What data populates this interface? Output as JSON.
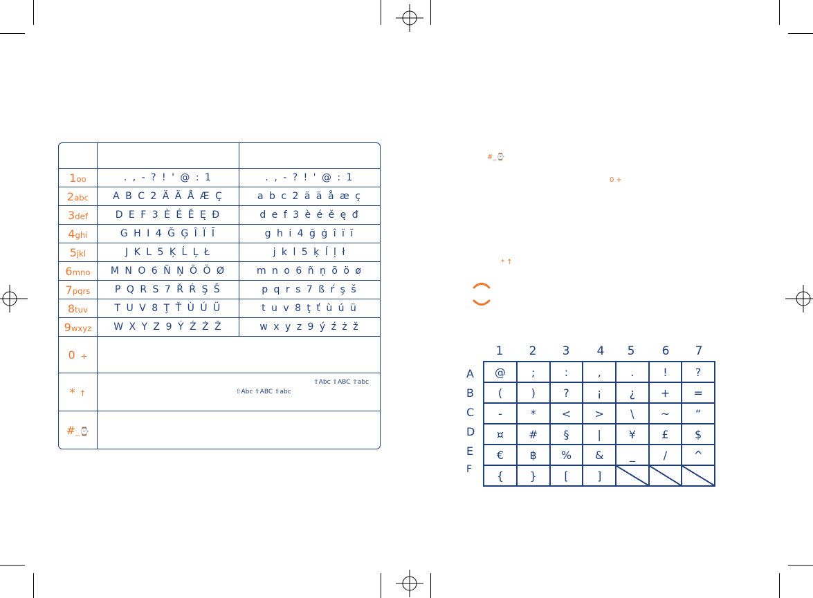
{
  "keys": {
    "rows": [
      {
        "key": "1",
        "sub": "oo",
        "upper": ". , - ? ! ' @ : 1",
        "lower": ". , - ? ! ' @ : 1"
      },
      {
        "key": "2",
        "sub": "abc",
        "upper": "A B C 2 Ä Ä Å Æ Ç",
        "lower": "a b c 2 ä ä å æ ç"
      },
      {
        "key": "3",
        "sub": "def",
        "upper": "D E F 3 È É Ě Ę Đ",
        "lower": "d e f 3 è é ě ę đ"
      },
      {
        "key": "4",
        "sub": "ghi",
        "upper": "G H I 4 Ğ Ģ Î Ï Ī",
        "lower": "g h i 4 ğ ģ î ï ī"
      },
      {
        "key": "5",
        "sub": "jkl",
        "upper": "J K L 5 Ķ Ĺ Ļ Ł",
        "lower": "j k l 5 ķ ĺ ļ ł"
      },
      {
        "key": "6",
        "sub": "mno",
        "upper": "M N O 6 Ñ Ņ Õ Ö Ø",
        "lower": "m n o 6 ñ ņ õ ö ø"
      },
      {
        "key": "7",
        "sub": "pqrs",
        "upper": "P Q R S 7 Ř Ŕ Ş Š",
        "lower": "p q r s 7 ß ŕ ş š"
      },
      {
        "key": "8",
        "sub": "tuv",
        "upper": "T U V 8 Ţ Ť Ù Ú Ü",
        "lower": "t u v 8 ţ ť ù ú ü"
      },
      {
        "key": "9",
        "sub": "wxyz",
        "upper": "W X Y Z 9 Ý Ź Ż Ž",
        "lower": "w x y z 9 ý ź ż ž"
      }
    ],
    "zero": {
      "key": "0",
      "sub": "+"
    },
    "star": {
      "key": "*",
      "sub": "↑",
      "modes_line1": "⇧Abc   ⇧ABC   ⇧abc",
      "modes_line2": "⇧Abc   ⇧ABC   ⇧abc"
    },
    "hash": {
      "key": "#",
      "sub": "_⌚"
    }
  },
  "right_markers": {
    "hash_marker": "#_⌚",
    "zero_marker": "0 +",
    "star_marker": "* ↑"
  },
  "symbol_grid": {
    "columns": [
      "1",
      "2",
      "3",
      "4",
      "5",
      "6",
      "7"
    ],
    "rows": [
      "A",
      "B",
      "C",
      "D",
      "E",
      "F"
    ],
    "cells": [
      [
        "@",
        ";",
        ":",
        ",",
        ".",
        "!",
        "?"
      ],
      [
        "(",
        ")",
        "?",
        "¡",
        "¿",
        "+",
        "="
      ],
      [
        "-",
        "*",
        "<",
        ">",
        "\\",
        "~",
        "“"
      ],
      [
        "¤",
        "#",
        "§",
        "|",
        "¥",
        "£",
        "$"
      ],
      [
        "€",
        "฿",
        "%",
        "&",
        "_",
        "/",
        "^"
      ],
      [
        "{",
        "}",
        "[",
        "]",
        "",
        "",
        ""
      ]
    ]
  },
  "colors": {
    "navy": "#1f3f7a",
    "orange": "#e8772e"
  }
}
